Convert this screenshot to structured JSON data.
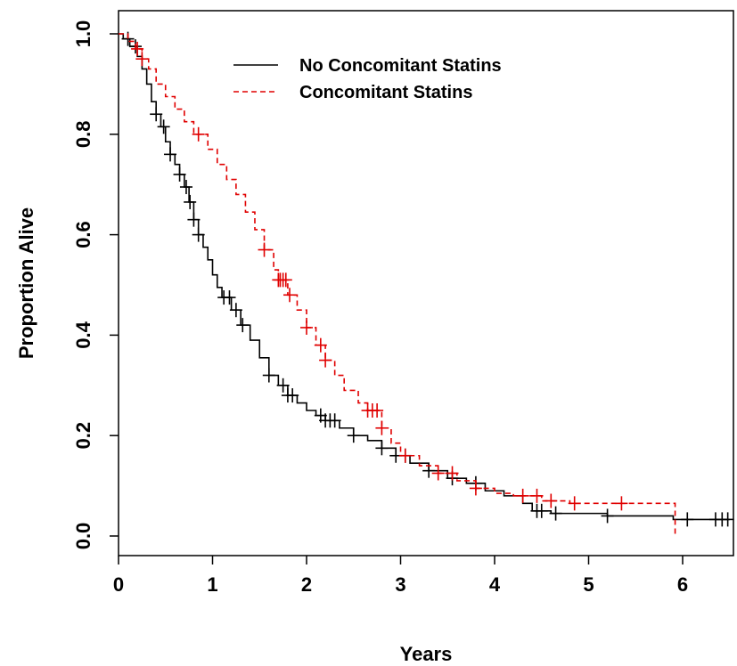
{
  "chart_data": {
    "type": "line",
    "title": "",
    "xlabel": "Years",
    "ylabel": "Proportion Alive",
    "xlim": [
      0,
      6.5
    ],
    "ylim": [
      0,
      1.0
    ],
    "x_ticks": [
      "0",
      "1",
      "2",
      "3",
      "4",
      "5",
      "6"
    ],
    "y_ticks": [
      "0.0",
      "0.2",
      "0.4",
      "0.6",
      "0.8",
      "1.0"
    ],
    "legend_position": "top-center",
    "grid": false,
    "series": [
      {
        "name": "No Concomitant Statins",
        "color": "#000000",
        "line_style": "solid",
        "step_points": [
          [
            0.0,
            1.0
          ],
          [
            0.05,
            0.99
          ],
          [
            0.12,
            0.975
          ],
          [
            0.2,
            0.955
          ],
          [
            0.25,
            0.93
          ],
          [
            0.3,
            0.9
          ],
          [
            0.35,
            0.865
          ],
          [
            0.4,
            0.84
          ],
          [
            0.45,
            0.815
          ],
          [
            0.5,
            0.785
          ],
          [
            0.55,
            0.76
          ],
          [
            0.6,
            0.74
          ],
          [
            0.65,
            0.72
          ],
          [
            0.7,
            0.695
          ],
          [
            0.75,
            0.665
          ],
          [
            0.8,
            0.63
          ],
          [
            0.85,
            0.6
          ],
          [
            0.9,
            0.575
          ],
          [
            0.95,
            0.55
          ],
          [
            1.0,
            0.52
          ],
          [
            1.05,
            0.495
          ],
          [
            1.1,
            0.475
          ],
          [
            1.2,
            0.45
          ],
          [
            1.3,
            0.42
          ],
          [
            1.4,
            0.39
          ],
          [
            1.5,
            0.355
          ],
          [
            1.6,
            0.32
          ],
          [
            1.7,
            0.3
          ],
          [
            1.8,
            0.28
          ],
          [
            1.9,
            0.265
          ],
          [
            2.0,
            0.25
          ],
          [
            2.1,
            0.24
          ],
          [
            2.2,
            0.23
          ],
          [
            2.35,
            0.215
          ],
          [
            2.5,
            0.2
          ],
          [
            2.65,
            0.19
          ],
          [
            2.8,
            0.175
          ],
          [
            2.95,
            0.16
          ],
          [
            3.1,
            0.145
          ],
          [
            3.3,
            0.13
          ],
          [
            3.5,
            0.115
          ],
          [
            3.7,
            0.105
          ],
          [
            3.9,
            0.09
          ],
          [
            4.1,
            0.08
          ],
          [
            4.3,
            0.065
          ],
          [
            4.4,
            0.05
          ],
          [
            4.6,
            0.045
          ],
          [
            5.2,
            0.04
          ],
          [
            5.9,
            0.033
          ],
          [
            6.5,
            0.033
          ]
        ],
        "censor_x": [
          0.1,
          0.18,
          0.4,
          0.48,
          0.55,
          0.65,
          0.72,
          0.76,
          0.8,
          0.85,
          1.12,
          1.18,
          1.25,
          1.32,
          1.6,
          1.75,
          1.8,
          1.85,
          2.15,
          2.2,
          2.25,
          2.3,
          2.5,
          2.8,
          2.95,
          3.05,
          3.3,
          3.55,
          3.8,
          4.45,
          4.5,
          4.65,
          5.2,
          6.05,
          6.35,
          6.42,
          6.48
        ]
      },
      {
        "name": "Concomitant Statins",
        "color": "#e00000",
        "line_style": "dashed",
        "step_points": [
          [
            0.0,
            1.0
          ],
          [
            0.1,
            0.985
          ],
          [
            0.18,
            0.97
          ],
          [
            0.25,
            0.95
          ],
          [
            0.32,
            0.93
          ],
          [
            0.4,
            0.9
          ],
          [
            0.5,
            0.875
          ],
          [
            0.6,
            0.85
          ],
          [
            0.7,
            0.825
          ],
          [
            0.8,
            0.8
          ],
          [
            0.95,
            0.77
          ],
          [
            1.05,
            0.74
          ],
          [
            1.15,
            0.71
          ],
          [
            1.25,
            0.68
          ],
          [
            1.35,
            0.645
          ],
          [
            1.45,
            0.61
          ],
          [
            1.55,
            0.57
          ],
          [
            1.65,
            0.53
          ],
          [
            1.7,
            0.51
          ],
          [
            1.8,
            0.48
          ],
          [
            1.9,
            0.45
          ],
          [
            2.0,
            0.415
          ],
          [
            2.1,
            0.38
          ],
          [
            2.2,
            0.35
          ],
          [
            2.3,
            0.32
          ],
          [
            2.4,
            0.29
          ],
          [
            2.55,
            0.265
          ],
          [
            2.65,
            0.25
          ],
          [
            2.8,
            0.215
          ],
          [
            2.9,
            0.185
          ],
          [
            3.0,
            0.16
          ],
          [
            3.2,
            0.14
          ],
          [
            3.4,
            0.125
          ],
          [
            3.6,
            0.11
          ],
          [
            3.8,
            0.095
          ],
          [
            4.0,
            0.085
          ],
          [
            4.2,
            0.08
          ],
          [
            4.5,
            0.07
          ],
          [
            4.8,
            0.065
          ],
          [
            5.9,
            0.065
          ],
          [
            5.92,
            0.0
          ]
        ],
        "censor_x": [
          0.2,
          0.25,
          0.85,
          1.55,
          1.7,
          1.72,
          1.75,
          1.78,
          1.82,
          2.0,
          2.15,
          2.2,
          2.65,
          2.7,
          2.75,
          2.8,
          3.05,
          3.4,
          3.55,
          3.8,
          4.3,
          4.45,
          4.6,
          4.85,
          5.35
        ]
      }
    ]
  }
}
